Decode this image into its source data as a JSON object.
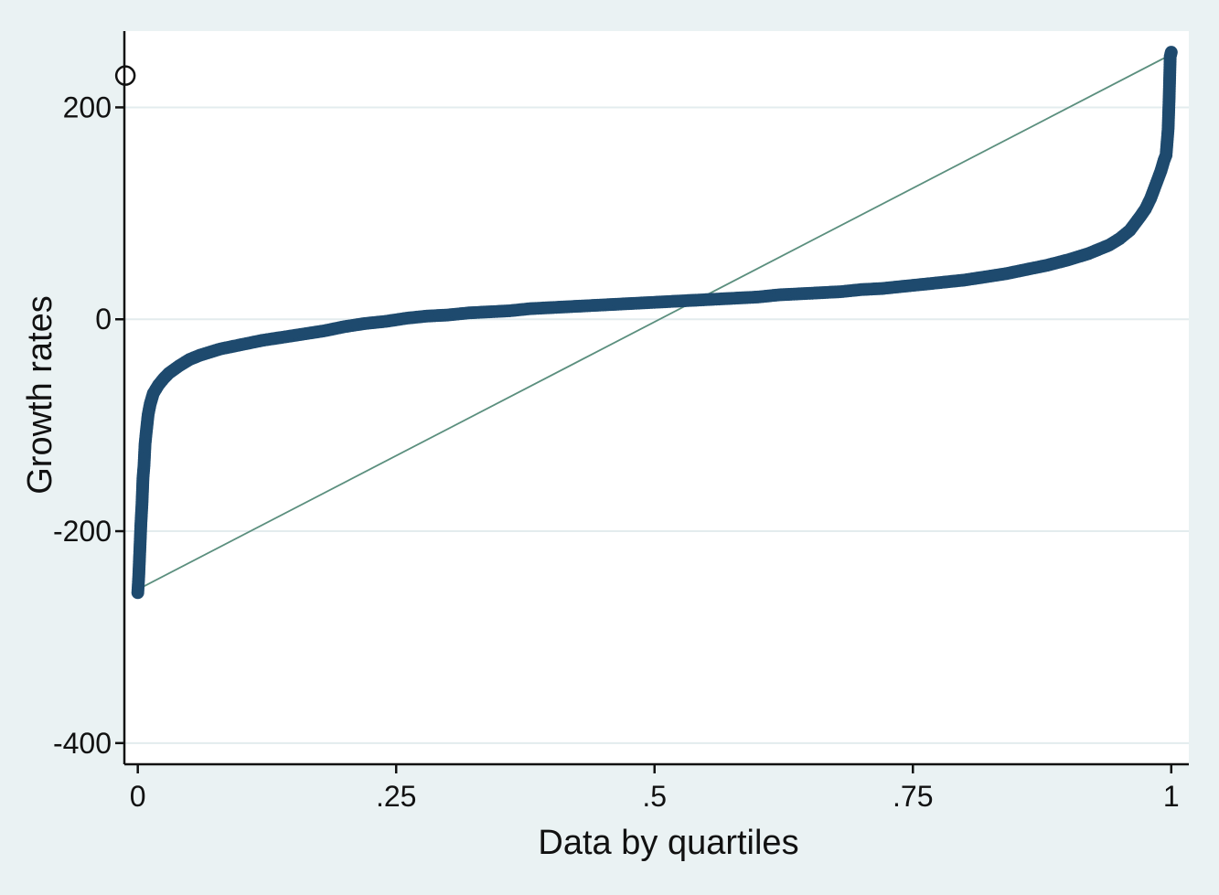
{
  "chart_data": {
    "type": "scatter",
    "title": "",
    "xlabel": "Data by quartiles",
    "ylabel": "Growth rates",
    "xlim": [
      -0.013,
      1.017
    ],
    "ylim": [
      -420,
      272
    ],
    "xticks": [
      {
        "value": 0,
        "label": "0"
      },
      {
        "value": 0.25,
        "label": ".25"
      },
      {
        "value": 0.5,
        "label": ".5"
      },
      {
        "value": 0.75,
        "label": ".75"
      },
      {
        "value": 1,
        "label": "1"
      }
    ],
    "yticks": [
      {
        "value": -400,
        "label": "-400"
      },
      {
        "value": -200,
        "label": "-200"
      },
      {
        "value": 0,
        "label": "0"
      },
      {
        "value": 200,
        "label": "200"
      }
    ],
    "grid": true,
    "legend": "none",
    "colors": {
      "points": "#1e4a6e",
      "reference_line": "#5b8f7e",
      "plot_background": "#ffffff",
      "outer_background": "#eaf2f3",
      "grid": "#e3ecee"
    },
    "reference_line": {
      "x": [
        0,
        1
      ],
      "y": [
        -255,
        250
      ]
    },
    "outlier_marker": {
      "x": -0.012,
      "y": 230
    },
    "series": [
      {
        "marker": "filled-circle",
        "x": [
          0,
          0.0009,
          0.0018,
          0.003,
          0.004,
          0.0045,
          0.005,
          0.006,
          0.0065,
          0.007,
          0.008,
          0.009,
          0.01,
          0.012,
          0.015,
          0.02,
          0.025,
          0.03,
          0.04,
          0.05,
          0.06,
          0.07,
          0.08,
          0.09,
          0.1,
          0.12,
          0.14,
          0.16,
          0.18,
          0.2,
          0.22,
          0.24,
          0.26,
          0.28,
          0.3,
          0.32,
          0.34,
          0.36,
          0.38,
          0.4,
          0.42,
          0.44,
          0.46,
          0.48,
          0.5,
          0.52,
          0.54,
          0.56,
          0.58,
          0.6,
          0.62,
          0.64,
          0.66,
          0.68,
          0.7,
          0.72,
          0.74,
          0.76,
          0.78,
          0.8,
          0.82,
          0.84,
          0.86,
          0.88,
          0.9,
          0.92,
          0.94,
          0.95,
          0.96,
          0.97,
          0.975,
          0.98,
          0.985,
          0.99,
          0.993,
          0.995,
          0.997,
          0.998,
          0.999,
          1
        ],
        "y": [
          -258,
          -243,
          -222,
          -193,
          -175,
          -163,
          -150,
          -138,
          -128,
          -118,
          -108,
          -99,
          -90,
          -80,
          -70,
          -62,
          -56,
          -51,
          -44,
          -38,
          -34,
          -31,
          -28,
          -26,
          -24,
          -20,
          -17,
          -14,
          -11,
          -7,
          -4,
          -2,
          1,
          3,
          4,
          6,
          7,
          8,
          10,
          11,
          12,
          13,
          14,
          15,
          16,
          17,
          18,
          19,
          20,
          21,
          23,
          24,
          25,
          26,
          28,
          29,
          31,
          33,
          35,
          37,
          40,
          43,
          47,
          51,
          56,
          62,
          70,
          76,
          84,
          97,
          104,
          114,
          127,
          140,
          150,
          155,
          180,
          210,
          248,
          252
        ]
      }
    ]
  }
}
